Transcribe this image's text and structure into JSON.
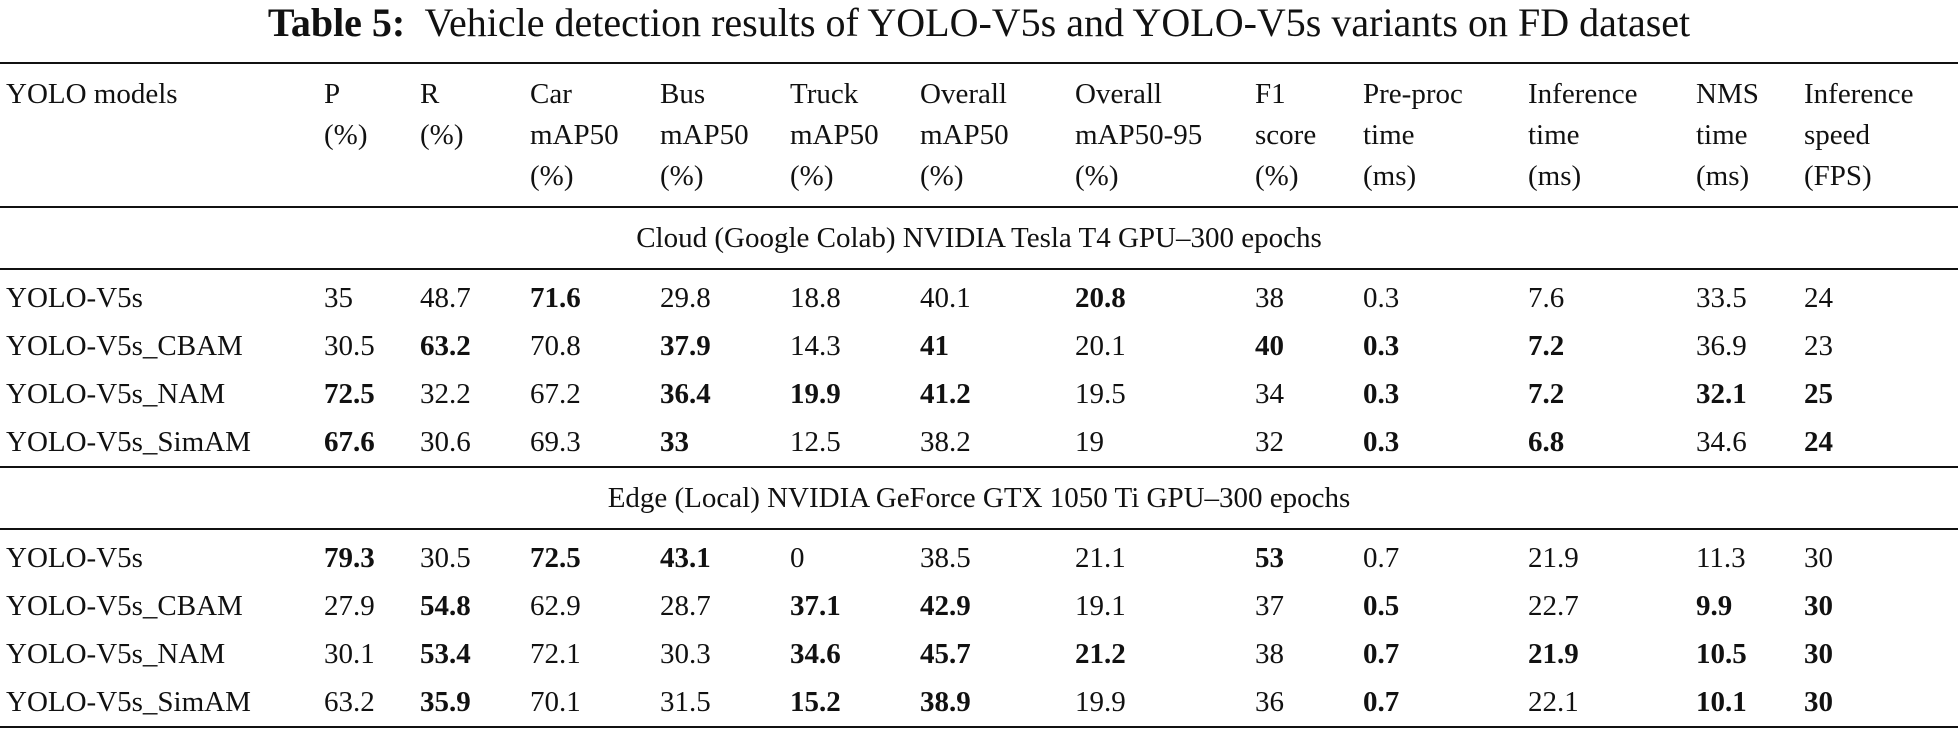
{
  "caption": {
    "label": "Table 5:",
    "text": "Vehicle detection results of YOLO-V5s and YOLO-V5s variants on FD dataset"
  },
  "columns": [
    {
      "lines": [
        "YOLO models"
      ]
    },
    {
      "lines": [
        "P",
        "(%)"
      ]
    },
    {
      "lines": [
        "R",
        "(%)"
      ]
    },
    {
      "lines": [
        "Car",
        "mAP50",
        "(%)"
      ]
    },
    {
      "lines": [
        "Bus",
        "mAP50",
        "(%)"
      ]
    },
    {
      "lines": [
        "Truck",
        "mAP50",
        "(%)"
      ]
    },
    {
      "lines": [
        "Overall",
        "mAP50",
        "(%)"
      ]
    },
    {
      "lines": [
        "Overall",
        "mAP50-95",
        "(%)"
      ]
    },
    {
      "lines": [
        "F1",
        "score",
        "(%)"
      ]
    },
    {
      "lines": [
        "Pre-proc",
        "time",
        "(ms)"
      ]
    },
    {
      "lines": [
        "Inference",
        "time",
        "(ms)"
      ]
    },
    {
      "lines": [
        "NMS",
        "time",
        "(ms)"
      ]
    },
    {
      "lines": [
        "Inference",
        "speed",
        "(FPS)"
      ]
    }
  ],
  "sections": [
    {
      "title": "Cloud (Google Colab) NVIDIA Tesla T4 GPU–300 epochs",
      "rows": [
        {
          "cells": [
            "YOLO-V5s",
            "35",
            "48.7",
            "71.6",
            "29.8",
            "18.8",
            "40.1",
            "20.8",
            "38",
            "0.3",
            "7.6",
            "33.5",
            "24"
          ],
          "bold": [
            false,
            false,
            false,
            true,
            false,
            false,
            false,
            true,
            false,
            false,
            false,
            false,
            false
          ]
        },
        {
          "cells": [
            "YOLO-V5s_CBAM",
            "30.5",
            "63.2",
            "70.8",
            "37.9",
            "14.3",
            "41",
            "20.1",
            "40",
            "0.3",
            "7.2",
            "36.9",
            "23"
          ],
          "bold": [
            false,
            false,
            true,
            false,
            true,
            false,
            true,
            false,
            true,
            true,
            true,
            false,
            false
          ]
        },
        {
          "cells": [
            "YOLO-V5s_NAM",
            "72.5",
            "32.2",
            "67.2",
            "36.4",
            "19.9",
            "41.2",
            "19.5",
            "34",
            "0.3",
            "7.2",
            "32.1",
            "25"
          ],
          "bold": [
            false,
            true,
            false,
            false,
            true,
            true,
            true,
            false,
            false,
            true,
            true,
            true,
            true
          ]
        },
        {
          "cells": [
            "YOLO-V5s_SimAM",
            "67.6",
            "30.6",
            "69.3",
            "33",
            "12.5",
            "38.2",
            "19",
            "32",
            "0.3",
            "6.8",
            "34.6",
            "24"
          ],
          "bold": [
            false,
            true,
            false,
            false,
            true,
            false,
            false,
            false,
            false,
            true,
            true,
            false,
            true
          ]
        }
      ]
    },
    {
      "title": "Edge (Local) NVIDIA GeForce GTX 1050 Ti GPU–300 epochs",
      "rows": [
        {
          "cells": [
            "YOLO-V5s",
            "79.3",
            "30.5",
            "72.5",
            "43.1",
            "0",
            "38.5",
            "21.1",
            "53",
            "0.7",
            "21.9",
            "11.3",
            "30"
          ],
          "bold": [
            false,
            true,
            false,
            true,
            true,
            false,
            false,
            false,
            true,
            false,
            false,
            false,
            false
          ]
        },
        {
          "cells": [
            "YOLO-V5s_CBAM",
            "27.9",
            "54.8",
            "62.9",
            "28.7",
            "37.1",
            "42.9",
            "19.1",
            "37",
            "0.5",
            "22.7",
            "9.9",
            "30"
          ],
          "bold": [
            false,
            false,
            true,
            false,
            false,
            true,
            true,
            false,
            false,
            true,
            false,
            true,
            true
          ]
        },
        {
          "cells": [
            "YOLO-V5s_NAM",
            "30.1",
            "53.4",
            "72.1",
            "30.3",
            "34.6",
            "45.7",
            "21.2",
            "38",
            "0.7",
            "21.9",
            "10.5",
            "30"
          ],
          "bold": [
            false,
            false,
            true,
            false,
            false,
            true,
            true,
            true,
            false,
            true,
            true,
            true,
            true
          ]
        },
        {
          "cells": [
            "YOLO-V5s_SimAM",
            "63.2",
            "35.9",
            "70.1",
            "31.5",
            "15.2",
            "38.9",
            "19.9",
            "36",
            "0.7",
            "22.1",
            "10.1",
            "30"
          ],
          "bold": [
            false,
            false,
            true,
            false,
            false,
            true,
            true,
            false,
            false,
            true,
            false,
            true,
            true
          ]
        }
      ]
    }
  ]
}
